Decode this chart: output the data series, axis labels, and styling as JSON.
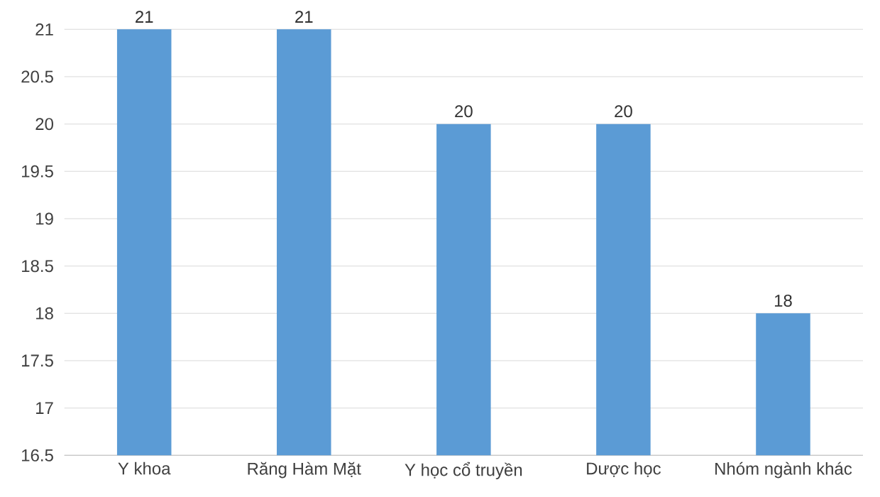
{
  "chart_data": {
    "type": "bar",
    "categories": [
      "Y khoa",
      "Răng Hàm Mặt",
      "Y học cổ truyền",
      "Dược học",
      "Nhóm ngành khác"
    ],
    "values": [
      21,
      21,
      20,
      20,
      18
    ],
    "color": "#5b9bd5",
    "ylim": [
      16.5,
      21
    ],
    "yticks": [
      16.5,
      17,
      17.5,
      18,
      18.5,
      19,
      19.5,
      20,
      20.5,
      21
    ],
    "grid": "y",
    "data_labels": true
  }
}
